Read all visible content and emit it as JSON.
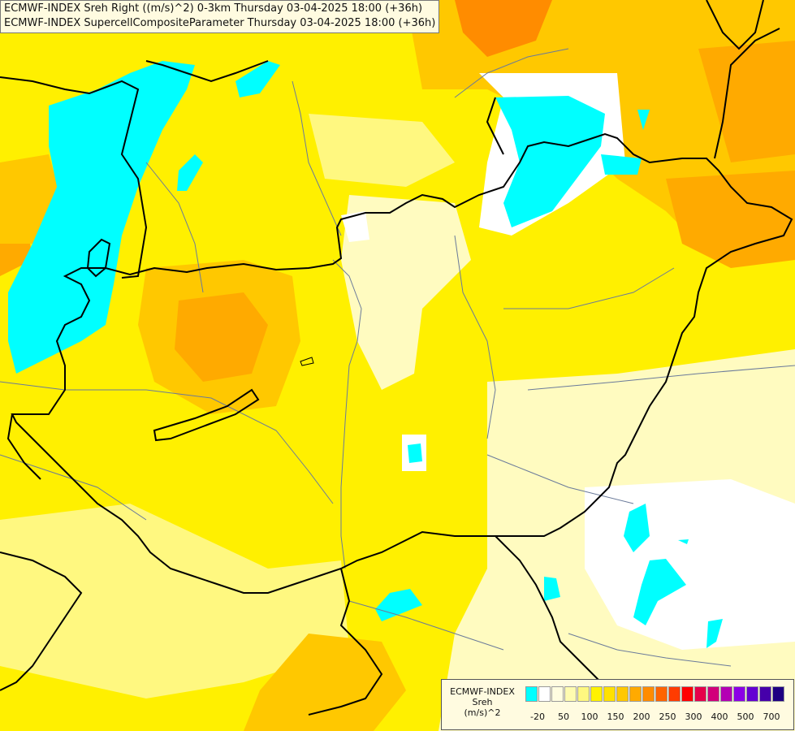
{
  "titles": {
    "line1": "ECMWF-INDEX Sreh Right ((m/s)^2) 0-3km Thursday 03-04-2025 18:00 (+36h)",
    "line2": "ECMWF-INDEX SupercellCompositeParameter Thursday 03-04-2025 18:00 (+36h)"
  },
  "legend": {
    "line1": "ECMWF-INDEX",
    "line2": "Sreh",
    "line3": "(m/s)^2",
    "ticks": [
      "-20",
      "50",
      "100",
      "150",
      "200",
      "250",
      "300",
      "400",
      "500",
      "700"
    ],
    "colors": [
      "#00ffff",
      "#ffffff",
      "#fffde0",
      "#fffcb0",
      "#fff880",
      "#fff200",
      "#ffe100",
      "#ffc800",
      "#ffaa00",
      "#ff8c00",
      "#ff6400",
      "#ff3c00",
      "#ff0000",
      "#e6004a",
      "#d2007a",
      "#b400b4",
      "#8c00e6",
      "#6400d2",
      "#4600aa",
      "#1e0082"
    ]
  },
  "map_colors": {
    "base": "#fff000",
    "light": "#fffbc0",
    "pale": "#fff880",
    "orange": "#ffc800",
    "dark_orange": "#ffaa00",
    "red_orange": "#ff8c00",
    "cyan": "#00ffff",
    "border": "#000000",
    "river": "#6a7a9a"
  }
}
